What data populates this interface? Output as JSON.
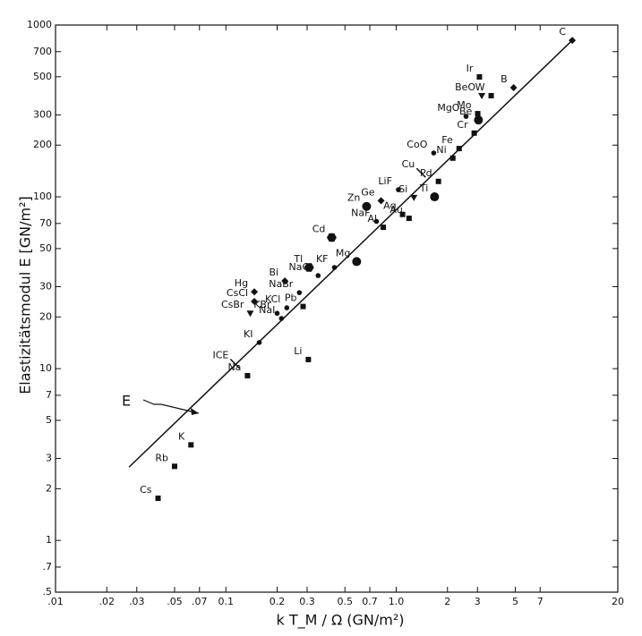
{
  "chart_data": {
    "type": "scatter",
    "x_label": "k T_M / Ω   (GN/m²)",
    "y_label": "Elastizitätsmodul E   [GN/m²]",
    "log_x": true,
    "log_y": true,
    "color": "#111111",
    "xlim": [
      0.01,
      20
    ],
    "ylim": [
      0.5,
      1000
    ],
    "xticks": [
      {
        "value": 0.01,
        "label": ".01"
      },
      {
        "value": 0.02,
        "label": ".02"
      },
      {
        "value": 0.03,
        "label": ".03"
      },
      {
        "value": 0.05,
        "label": ".05"
      },
      {
        "value": 0.07,
        "label": ".07"
      },
      0.1,
      0.2,
      0.3,
      0.5,
      0.7,
      {
        "value": 1,
        "label": "1.0"
      },
      2,
      3,
      5,
      7,
      20
    ],
    "yticks": [
      1000,
      700,
      500,
      300,
      200,
      100,
      70,
      50,
      30,
      20,
      10,
      7,
      5,
      3,
      2,
      1,
      {
        "value": 0.7,
        "label": ".7"
      },
      {
        "value": 0.5,
        "label": ".5"
      }
    ],
    "line": {
      "name": "E",
      "x": [
        0.027,
        10.8
      ],
      "y": [
        2.67,
        815
      ]
    },
    "points": [
      {
        "label": "C",
        "x": 10.8,
        "y": 815,
        "marker": "diamond"
      },
      {
        "label": "Ir",
        "x": 3.08,
        "y": 499,
        "marker": "square"
      },
      {
        "label": "W",
        "x": 3.61,
        "y": 388,
        "marker": "square"
      },
      {
        "label": "BeO",
        "x": 3.18,
        "y": 388,
        "marker": "triangle"
      },
      {
        "label": "B",
        "x": 4.89,
        "y": 432,
        "marker": "diamond"
      },
      {
        "label": "Mo",
        "x": 3.01,
        "y": 305,
        "marker": "square"
      },
      {
        "label": "MgO",
        "x": 2.57,
        "y": 294,
        "marker": "circle"
      },
      {
        "label": "Be",
        "x": 3.04,
        "y": 280,
        "marker": "bigcircle"
      },
      {
        "label": "Cr",
        "x": 2.87,
        "y": 235,
        "marker": "square"
      },
      {
        "label": "CoO",
        "x": 1.66,
        "y": 180,
        "marker": "circle"
      },
      {
        "label": "Fe",
        "x": 2.34,
        "y": 191,
        "marker": "square"
      },
      {
        "label": "Ni",
        "x": 2.15,
        "y": 168,
        "marker": "square"
      },
      {
        "label": "Cu",
        "x": 1.4,
        "y": 138,
        "marker": "dash"
      },
      {
        "label": "Pd",
        "x": 1.77,
        "y": 123,
        "marker": "square"
      },
      {
        "label": "LiF",
        "x": 1.03,
        "y": 110,
        "marker": "circle"
      },
      {
        "label": "Si",
        "x": 1.27,
        "y": 99,
        "marker": "triangle"
      },
      {
        "label": "Ti",
        "x": 1.68,
        "y": 100,
        "marker": "bigcircle"
      },
      {
        "label": "Ge",
        "x": 0.815,
        "y": 95,
        "marker": "diamond"
      },
      {
        "label": "Zn",
        "x": 0.67,
        "y": 88,
        "marker": "bigcircle"
      },
      {
        "label": "Ag",
        "x": 1.09,
        "y": 79,
        "marker": "square"
      },
      {
        "label": "Au",
        "x": 1.19,
        "y": 75,
        "marker": "square"
      },
      {
        "label": "NaF",
        "x": 0.766,
        "y": 72,
        "marker": "circle"
      },
      {
        "label": "Al",
        "x": 0.84,
        "y": 66.5,
        "marker": "square"
      },
      {
        "label": "Cd",
        "x": 0.418,
        "y": 58,
        "marker": "hexagon"
      },
      {
        "label": "KF",
        "x": 0.434,
        "y": 38.8,
        "marker": "circle"
      },
      {
        "label": "Mg",
        "x": 0.586,
        "y": 42,
        "marker": "bigcircle"
      },
      {
        "label": "Tl",
        "x": 0.308,
        "y": 38.8,
        "marker": "hexagon"
      },
      {
        "label": "NaCl",
        "x": 0.348,
        "y": 34.8,
        "marker": "circle"
      },
      {
        "label": "Bi",
        "x": 0.222,
        "y": 32.4,
        "marker": "diamond"
      },
      {
        "label": "NaBr",
        "x": 0.27,
        "y": 27.7,
        "marker": "circle"
      },
      {
        "label": "Hg",
        "x": 0.147,
        "y": 28,
        "marker": "diamond"
      },
      {
        "label": "CsCl",
        "x": 0.147,
        "y": 24.6,
        "marker": "diamond"
      },
      {
        "label": "KCl",
        "x": 0.228,
        "y": 22.6,
        "marker": "circle"
      },
      {
        "label": "Pb",
        "x": 0.284,
        "y": 23,
        "marker": "square"
      },
      {
        "label": "CsBr",
        "x": 0.139,
        "y": 21,
        "marker": "triangle"
      },
      {
        "label": "KBr",
        "x": 0.2,
        "y": 21,
        "marker": "circle"
      },
      {
        "label": "NaI",
        "x": 0.212,
        "y": 19.6,
        "marker": "circle"
      },
      {
        "label": "KI",
        "x": 0.157,
        "y": 14.2,
        "marker": "circle"
      },
      {
        "label": "Li",
        "x": 0.305,
        "y": 11.3,
        "marker": "square"
      },
      {
        "label": "ICE",
        "x": 0.113,
        "y": 10.7,
        "marker": "dash"
      },
      {
        "label": "Na",
        "x": 0.134,
        "y": 9.1,
        "marker": "square"
      },
      {
        "label": "K",
        "x": 0.0624,
        "y": 3.6,
        "marker": "square"
      },
      {
        "label": "Rb",
        "x": 0.05,
        "y": 2.7,
        "marker": "square"
      },
      {
        "label": "Cs",
        "x": 0.04,
        "y": 1.76,
        "marker": "square"
      }
    ]
  }
}
